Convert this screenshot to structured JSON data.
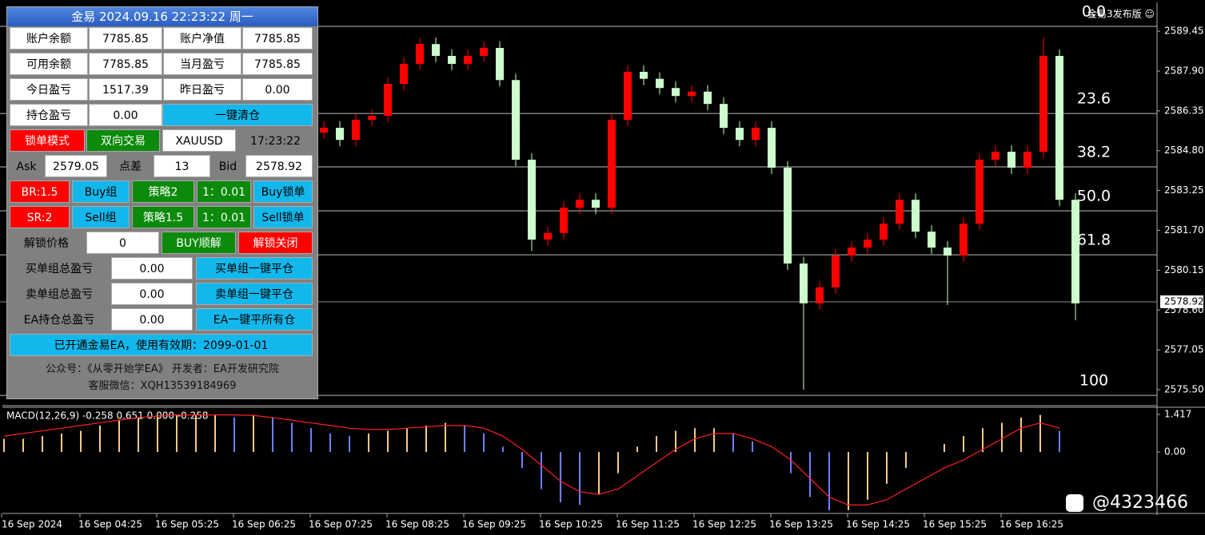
{
  "chart_data": [
    {
      "type": "candlestick",
      "up_color": "#ff0000",
      "down_color": "#ccffcc",
      "ylim": [
        2574.91,
        2590.51
      ],
      "yticks": [
        2589.45,
        {
          "value": 2587.9,
          "label": "2587.90"
        },
        2586.35,
        {
          "value": 2584.8,
          "label": "2584.80"
        },
        2583.25,
        {
          "value": 2581.7,
          "label": "2581.70"
        },
        2580.15,
        {
          "value": 2578.6,
          "label": "2578.60"
        },
        2577.05,
        {
          "value": 2575.5,
          "label": "2575.50"
        }
      ],
      "current_price": 2578.92,
      "fibo": [
        {
          "label": "0.0",
          "value": 2589.64
        },
        {
          "label": "23.6",
          "value": 2586.25
        },
        {
          "label": "38.2",
          "value": 2584.17
        },
        {
          "label": "50.0",
          "value": 2582.46
        },
        {
          "label": "61.8",
          "value": 2580.75
        },
        {
          "label": "100",
          "value": 2575.28
        }
      ],
      "x_labels": [
        "16 Sep 2024",
        "16 Sep 04:25",
        "16 Sep 05:25",
        "16 Sep 06:25",
        "16 Sep 07:25",
        "16 Sep 08:25",
        "16 Sep 09:25",
        "16 Sep 10:25",
        "16 Sep 11:25",
        "16 Sep 12:25",
        "16 Sep 13:25",
        "16 Sep 14:25",
        "16 Sep 15:25",
        "16 Sep 16:25"
      ],
      "candles": [
        [
          2585.5,
          2585.95,
          2585.25,
          2585.69
        ],
        [
          2585.69,
          2585.94,
          2584.97,
          2585.22
        ],
        [
          2585.22,
          2586.25,
          2584.97,
          2586.0
        ],
        [
          2586.0,
          2586.41,
          2585.75,
          2586.16
        ],
        [
          2586.16,
          2587.65,
          2585.91,
          2587.4
        ],
        [
          2587.4,
          2588.43,
          2587.15,
          2588.18
        ],
        [
          2588.18,
          2589.2,
          2587.93,
          2588.95
        ],
        [
          2588.95,
          2589.2,
          2588.24,
          2588.49
        ],
        [
          2588.49,
          2588.74,
          2587.93,
          2588.18
        ],
        [
          2588.18,
          2588.74,
          2587.93,
          2588.49
        ],
        [
          2588.49,
          2589.05,
          2588.24,
          2588.8
        ],
        [
          2588.8,
          2589.05,
          2587.3,
          2587.55
        ],
        [
          2587.55,
          2587.8,
          2584.2,
          2584.45
        ],
        [
          2584.45,
          2584.7,
          2580.9,
          2581.34
        ],
        [
          2581.34,
          2581.85,
          2581.09,
          2581.6
        ],
        [
          2581.6,
          2582.83,
          2581.35,
          2582.58
        ],
        [
          2582.58,
          2583.14,
          2582.33,
          2582.89
        ],
        [
          2582.89,
          2583.14,
          2582.33,
          2582.58
        ],
        [
          2582.58,
          2586.25,
          2582.33,
          2586.0
        ],
        [
          2586.0,
          2588.12,
          2585.75,
          2587.87
        ],
        [
          2587.87,
          2588.12,
          2587.35,
          2587.6
        ],
        [
          2587.6,
          2587.85,
          2586.99,
          2587.24
        ],
        [
          2587.24,
          2587.49,
          2586.68,
          2586.93
        ],
        [
          2586.93,
          2587.35,
          2586.68,
          2587.1
        ],
        [
          2587.1,
          2587.35,
          2586.37,
          2586.62
        ],
        [
          2586.62,
          2586.87,
          2585.44,
          2585.69
        ],
        [
          2585.69,
          2585.94,
          2584.97,
          2585.22
        ],
        [
          2585.22,
          2585.94,
          2584.97,
          2585.69
        ],
        [
          2585.69,
          2585.94,
          2583.89,
          2584.14
        ],
        [
          2584.14,
          2584.39,
          2580.16,
          2580.41
        ],
        [
          2580.41,
          2580.66,
          2575.5,
          2578.86
        ],
        [
          2578.86,
          2579.73,
          2578.61,
          2579.48
        ],
        [
          2579.48,
          2580.97,
          2579.23,
          2580.72
        ],
        [
          2580.72,
          2581.28,
          2580.47,
          2581.03
        ],
        [
          2581.03,
          2581.59,
          2580.78,
          2581.34
        ],
        [
          2581.34,
          2582.21,
          2581.09,
          2581.96
        ],
        [
          2581.96,
          2583.14,
          2581.71,
          2582.89
        ],
        [
          2582.89,
          2583.14,
          2581.4,
          2581.65
        ],
        [
          2581.65,
          2581.9,
          2580.78,
          2581.03
        ],
        [
          2581.03,
          2581.28,
          2578.8,
          2580.72
        ],
        [
          2580.72,
          2582.21,
          2580.47,
          2581.96
        ],
        [
          2581.96,
          2584.7,
          2581.71,
          2584.45
        ],
        [
          2584.45,
          2585.01,
          2584.2,
          2584.76
        ],
        [
          2584.76,
          2585.01,
          2583.89,
          2584.14
        ],
        [
          2584.14,
          2585.01,
          2583.89,
          2584.76
        ],
        [
          2584.76,
          2589.2,
          2584.51,
          2588.49
        ],
        [
          2588.49,
          2588.74,
          2582.64,
          2582.89
        ],
        [
          2582.89,
          2583.14,
          2578.2,
          2578.86
        ]
      ]
    },
    {
      "type": "macd",
      "title": "MACD(12,26,9) -0.258 0.651 0.000 -0.258",
      "up_color": "#f7c98a",
      "down_color": "#6f80ff",
      "signal_color": "#ff2020",
      "ylim": [
        -2.29,
        1.66
      ],
      "yticks": [
        1.417,
        {
          "value": 0,
          "label": "0.00"
        }
      ],
      "values": [
        0.5,
        0.5,
        0.6,
        0.7,
        0.8,
        1.0,
        1.2,
        1.3,
        1.4,
        1.4,
        1.4,
        1.4,
        1.3,
        1.4,
        1.3,
        1.1,
        0.9,
        0.7,
        0.6,
        0.7,
        0.8,
        0.9,
        1.0,
        1.1,
        1.0,
        0.7,
        0.2,
        -0.6,
        -1.4,
        -1.9,
        -2.0,
        -1.6,
        -0.8,
        0.2,
        0.6,
        0.8,
        0.9,
        0.9,
        0.7,
        0.4,
        0.0,
        -0.8,
        -1.7,
        -2.2,
        -2.2,
        -1.8,
        -1.2,
        -0.6,
        0.0,
        0.3,
        0.6,
        0.9,
        1.1,
        1.3,
        1.4,
        0.8
      ],
      "signal": [
        0.6,
        0.7,
        0.8,
        0.9,
        1.0,
        1.1,
        1.2,
        1.3,
        1.35,
        1.4,
        1.4,
        1.4,
        1.4,
        1.38,
        1.3,
        1.2,
        1.1,
        1.0,
        0.9,
        0.85,
        0.85,
        0.9,
        0.95,
        1.0,
        1.0,
        0.9,
        0.6,
        0.1,
        -0.5,
        -1.1,
        -1.5,
        -1.6,
        -1.4,
        -0.9,
        -0.4,
        0.1,
        0.5,
        0.7,
        0.7,
        0.5,
        0.2,
        -0.3,
        -1.0,
        -1.7,
        -2.0,
        -2.0,
        -1.8,
        -1.4,
        -1.0,
        -0.6,
        -0.3,
        0.1,
        0.5,
        0.9,
        1.1,
        0.9
      ]
    }
  ],
  "brand": "金易3发布版 ☺",
  "watermark": "@4323466",
  "panel": {
    "title": "金易 2024.09.16 22:23:22 周一",
    "rows": [
      [
        "账户余额",
        "7785.85",
        "账户净值",
        "7785.85"
      ],
      [
        "可用余额",
        "7785.85",
        "当月盈亏",
        "7785.85"
      ],
      [
        "今日盈亏",
        "1517.39",
        "昨日盈亏",
        "0.00"
      ],
      [
        "持仓盈亏",
        "0.00",
        "一键清仓"
      ],
      [
        "锁单模式",
        "双向交易",
        "XAUUSD",
        "17:23:22"
      ],
      [
        "Ask",
        "2579.05",
        "点差",
        "13",
        "Bid",
        "2578.92"
      ],
      [
        "BR:1.5",
        "Buy组",
        "策略2",
        "1：0.01",
        "Buy锁单"
      ],
      [
        "SR:2",
        "Sell组",
        "策略1.5",
        "1：0.01",
        "Sell锁单"
      ],
      [
        "解锁价格",
        "0",
        "BUY顺解",
        "解锁关闭"
      ],
      [
        "买单组总盈亏",
        "0.00",
        "买单组一键平仓"
      ],
      [
        "卖单组总盈亏",
        "0.00",
        "卖单组一键平仓"
      ],
      [
        "EA持仓总盈亏",
        "0.00",
        "EA一键平所有仓"
      ],
      [
        "已开通金易EA，使用有效期：2099-01-01"
      ]
    ],
    "footer": [
      "公众号：《从零开始学EA》 开发者：EA开发研究院",
      "客服微信：XQH13539184969"
    ]
  }
}
